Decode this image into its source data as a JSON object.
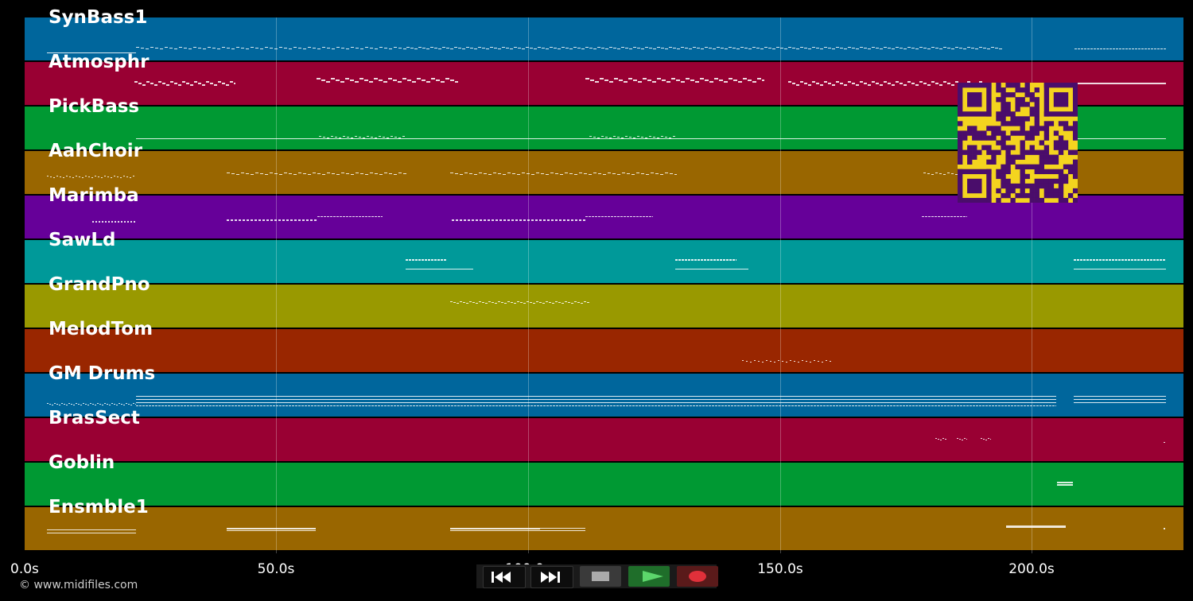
{
  "tracks": [
    {
      "name": "SynBass1",
      "color": "#00669c"
    },
    {
      "name": "Atmosphr",
      "color": "#990033"
    },
    {
      "name": "PickBass",
      "color": "#009933"
    },
    {
      "name": "AahChoir",
      "color": "#996600"
    },
    {
      "name": "Marimba",
      "color": "#660099"
    },
    {
      "name": "SawLd",
      "color": "#009999"
    },
    {
      "name": "GrandPno",
      "color": "#999900"
    },
    {
      "name": "MelodTom",
      "color": "#992600"
    },
    {
      "name": "GM Drums",
      "color": "#00669c"
    },
    {
      "name": "BrasSect",
      "color": "#990033"
    },
    {
      "name": "Goblin",
      "color": "#009933"
    },
    {
      "name": "Ensmble1",
      "color": "#996600"
    }
  ],
  "timeline": {
    "ticks": [
      "0.0s",
      "50.0s",
      "100.0s",
      "150.0s",
      "200.0s"
    ],
    "max_seconds": 230
  },
  "copyright": "© www.midifiles.com",
  "controls": {
    "rewind": "rewind-icon",
    "fast_forward": "fast-forward-icon",
    "stop": "stop-icon",
    "play": "play-icon",
    "record": "record-icon"
  },
  "qr_code": {
    "fg": "#4a0d6b",
    "bg": "#f4d41f"
  }
}
